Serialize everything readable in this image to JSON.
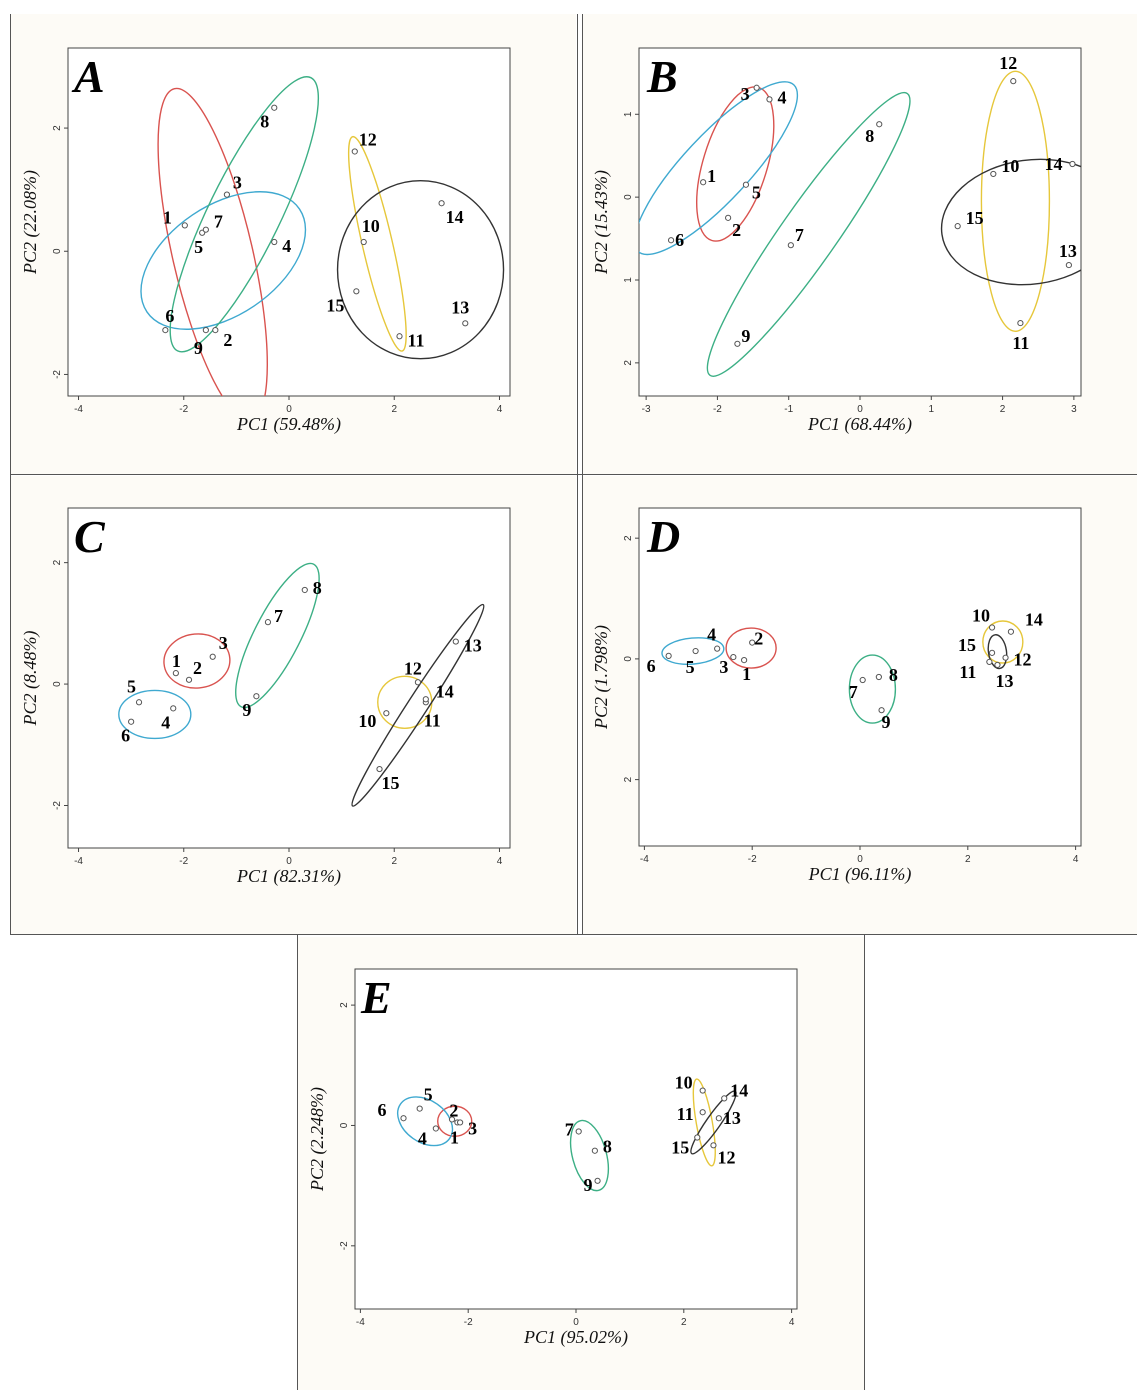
{
  "chart_data": [
    {
      "type": "scatter",
      "panel_label": "A",
      "xlabel": "PC1 (59.48%)",
      "ylabel": "PC2 (22.08%)",
      "xlim": [
        -4.2,
        4.2
      ],
      "ylim": [
        -2.35,
        3.3
      ],
      "xticks": [
        -4,
        -2,
        0,
        2,
        4
      ],
      "yticks": [
        -2,
        0,
        2
      ],
      "points": [
        {
          "label": "1",
          "x": -1.98,
          "y": 0.42
        },
        {
          "label": "2",
          "x": -1.4,
          "y": -1.28
        },
        {
          "label": "3",
          "x": -1.18,
          "y": 0.92
        },
        {
          "label": "4",
          "x": -0.28,
          "y": 0.15
        },
        {
          "label": "5",
          "x": -1.65,
          "y": 0.3
        },
        {
          "label": "6",
          "x": -2.35,
          "y": -1.28
        },
        {
          "label": "7",
          "x": -1.58,
          "y": 0.35
        },
        {
          "label": "8",
          "x": -0.28,
          "y": 2.33
        },
        {
          "label": "9",
          "x": -1.58,
          "y": -1.28
        },
        {
          "label": "10",
          "x": 1.42,
          "y": 0.15
        },
        {
          "label": "11",
          "x": 2.1,
          "y": -1.38
        },
        {
          "label": "12",
          "x": 1.25,
          "y": 1.62
        },
        {
          "label": "13",
          "x": 3.35,
          "y": -1.17
        },
        {
          "label": "14",
          "x": 2.9,
          "y": 0.78
        },
        {
          "label": "15",
          "x": 1.28,
          "y": -0.65
        }
      ]
    },
    {
      "type": "scatter",
      "panel_label": "B",
      "xlabel": "PC1 (68.44%)",
      "ylabel": "PC2 (15.43%)",
      "xlim": [
        -3.1,
        3.1
      ],
      "ylim": [
        -2.4,
        1.8
      ],
      "xticks": [
        -3,
        -2,
        -1,
        0,
        1,
        2,
        3
      ],
      "yticks": [
        -2,
        -1,
        0,
        1
      ],
      "ytick_labels": [
        "2",
        "1",
        "0",
        "1"
      ],
      "points": [
        {
          "label": "1",
          "x": -2.2,
          "y": 0.18
        },
        {
          "label": "2",
          "x": -1.85,
          "y": -0.25
        },
        {
          "label": "3",
          "x": -1.45,
          "y": 1.32
        },
        {
          "label": "4",
          "x": -1.27,
          "y": 1.18
        },
        {
          "label": "5",
          "x": -1.6,
          "y": 0.15
        },
        {
          "label": "6",
          "x": -2.65,
          "y": -0.52
        },
        {
          "label": "7",
          "x": -0.97,
          "y": -0.58
        },
        {
          "label": "8",
          "x": 0.27,
          "y": 0.88
        },
        {
          "label": "9",
          "x": -1.72,
          "y": -1.77
        },
        {
          "label": "10",
          "x": 1.87,
          "y": 0.28
        },
        {
          "label": "11",
          "x": 2.25,
          "y": -1.52
        },
        {
          "label": "12",
          "x": 2.15,
          "y": 1.4
        },
        {
          "label": "13",
          "x": 2.93,
          "y": -0.82
        },
        {
          "label": "14",
          "x": 2.98,
          "y": 0.4
        },
        {
          "label": "15",
          "x": 1.37,
          "y": -0.35
        }
      ]
    },
    {
      "type": "scatter",
      "panel_label": "C",
      "xlabel": "PC1 (82.31%)",
      "ylabel": "PC2 (8.48%)",
      "xlim": [
        -4.2,
        4.2
      ],
      "ylim": [
        -2.7,
        2.9
      ],
      "xticks": [
        -4,
        -2,
        0,
        2,
        4
      ],
      "yticks": [
        -2,
        0,
        2
      ],
      "points": [
        {
          "label": "1",
          "x": -2.15,
          "y": 0.18
        },
        {
          "label": "2",
          "x": -1.9,
          "y": 0.07
        },
        {
          "label": "3",
          "x": -1.45,
          "y": 0.45
        },
        {
          "label": "4",
          "x": -2.2,
          "y": -0.4
        },
        {
          "label": "5",
          "x": -2.85,
          "y": -0.3
        },
        {
          "label": "6",
          "x": -3.0,
          "y": -0.62
        },
        {
          "label": "7",
          "x": -0.4,
          "y": 1.02
        },
        {
          "label": "8",
          "x": 0.3,
          "y": 1.55
        },
        {
          "label": "9",
          "x": -0.62,
          "y": -0.2
        },
        {
          "label": "10",
          "x": 1.85,
          "y": -0.48
        },
        {
          "label": "11",
          "x": 2.6,
          "y": -0.3
        },
        {
          "label": "12",
          "x": 2.45,
          "y": 0.03
        },
        {
          "label": "13",
          "x": 3.17,
          "y": 0.7
        },
        {
          "label": "14",
          "x": 2.6,
          "y": -0.25
        },
        {
          "label": "15",
          "x": 1.72,
          "y": -1.4
        }
      ]
    },
    {
      "type": "scatter",
      "panel_label": "D",
      "xlabel": "PC1 (96.11%)",
      "ylabel": "PC2 (1.798%)",
      "xlim": [
        -4.1,
        4.1
      ],
      "ylim": [
        -3.1,
        2.5
      ],
      "xticks": [
        -4,
        -2,
        0,
        2,
        4
      ],
      "yticks": [
        -2,
        0,
        2
      ],
      "ytick_labels": [
        "2",
        "0",
        "2"
      ],
      "points": [
        {
          "label": "1",
          "x": -2.15,
          "y": -0.02
        },
        {
          "label": "2",
          "x": -2.0,
          "y": 0.27
        },
        {
          "label": "3",
          "x": -2.35,
          "y": 0.03
        },
        {
          "label": "4",
          "x": -2.65,
          "y": 0.17
        },
        {
          "label": "5",
          "x": -3.05,
          "y": 0.13
        },
        {
          "label": "6",
          "x": -3.55,
          "y": 0.05
        },
        {
          "label": "7",
          "x": 0.05,
          "y": -0.35
        },
        {
          "label": "8",
          "x": 0.35,
          "y": -0.3
        },
        {
          "label": "9",
          "x": 0.4,
          "y": -0.85
        },
        {
          "label": "10",
          "x": 2.45,
          "y": 0.52
        },
        {
          "label": "11",
          "x": 2.4,
          "y": -0.05
        },
        {
          "label": "12",
          "x": 2.7,
          "y": 0.02
        },
        {
          "label": "13",
          "x": 2.55,
          "y": -0.1
        },
        {
          "label": "14",
          "x": 2.8,
          "y": 0.45
        },
        {
          "label": "15",
          "x": 2.45,
          "y": 0.1
        }
      ]
    },
    {
      "type": "scatter",
      "panel_label": "E",
      "xlabel": "PC1 (95.02%)",
      "ylabel": "PC2 (2.248%)",
      "xlim": [
        -4.1,
        4.1
      ],
      "ylim": [
        -3.05,
        2.6
      ],
      "xticks": [
        -4,
        -2,
        0,
        2,
        4
      ],
      "yticks": [
        -2,
        0,
        2
      ],
      "points": [
        {
          "label": "1",
          "x": -2.3,
          "y": 0.1
        },
        {
          "label": "2",
          "x": -2.2,
          "y": 0.05
        },
        {
          "label": "3",
          "x": -2.15,
          "y": 0.05
        },
        {
          "label": "4",
          "x": -2.6,
          "y": -0.05
        },
        {
          "label": "5",
          "x": -2.9,
          "y": 0.28
        },
        {
          "label": "6",
          "x": -3.2,
          "y": 0.12
        },
        {
          "label": "7",
          "x": 0.05,
          "y": -0.1
        },
        {
          "label": "8",
          "x": 0.35,
          "y": -0.42
        },
        {
          "label": "9",
          "x": 0.4,
          "y": -0.92
        },
        {
          "label": "10",
          "x": 2.35,
          "y": 0.58
        },
        {
          "label": "11",
          "x": 2.35,
          "y": 0.22
        },
        {
          "label": "12",
          "x": 2.55,
          "y": -0.33
        },
        {
          "label": "13",
          "x": 2.65,
          "y": 0.12
        },
        {
          "label": "14",
          "x": 2.75,
          "y": 0.45
        },
        {
          "label": "15",
          "x": 2.25,
          "y": -0.2
        }
      ]
    }
  ],
  "cluster_colors": {
    "red": "#d9534f",
    "blue": "#3fa9d0",
    "green": "#3caf85",
    "yellow": "#e6c73b",
    "black": "#333333"
  }
}
